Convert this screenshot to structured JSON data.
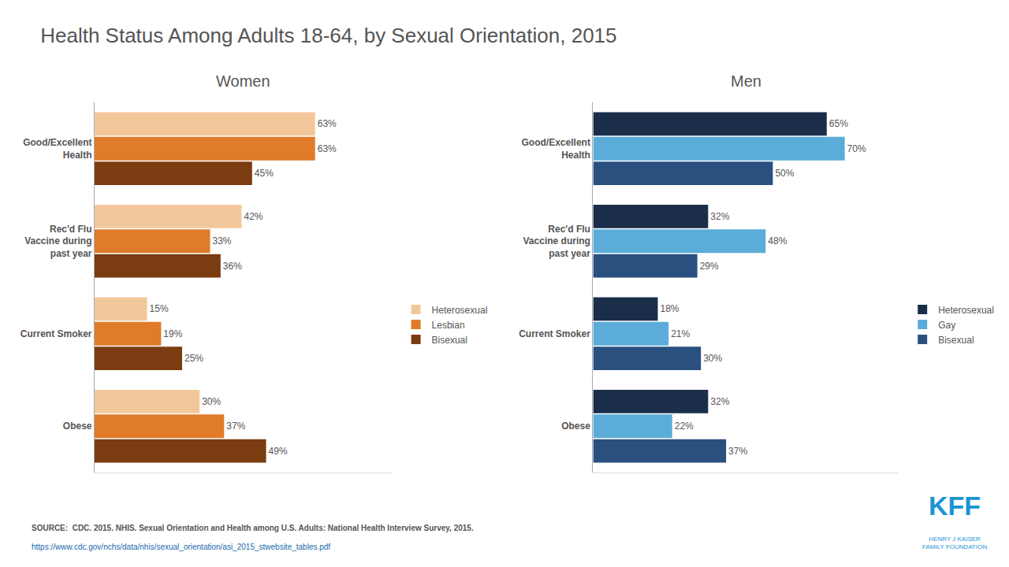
{
  "title": "Health Status Among Adults 18-64, by Sexual Orientation, 2015",
  "annotations": [
    {
      "text": "SOURCE:  CDC. 2015. NHIS. Sexual Orientation and Health among U.S. Adults: National Health Interview Survey, 2015.",
      "color": "#555555"
    },
    {
      "text": "https://www.cdc.gov/nchs/data/nhis/sexual_orientation/asi_2015_stwebsite_tables.pdf",
      "color": "#1a6aad"
    },
    {
      "text": "KFF",
      "color": "#1a95d2"
    },
    {
      "text": "HENRY J KAISER\nFAMILY FOUNDATION",
      "color": "#1a95d2"
    }
  ],
  "chart_data": [
    {
      "type": "bar",
      "orientation": "horizontal",
      "title": "Women",
      "categories": [
        "Good/Excellent\nHealth",
        "Rec'd Flu\nVaccine during\npast year",
        "Current Smoker",
        "Obese"
      ],
      "series": [
        {
          "name": "Heterosexual",
          "color": "#f2c89b",
          "values": [
            63,
            42,
            15,
            30
          ],
          "value_labels": [
            "63%",
            "42%",
            "15%",
            "30%"
          ]
        },
        {
          "name": "Lesbian",
          "color": "#e07b2a",
          "values": [
            63,
            33,
            19,
            37
          ],
          "value_labels": [
            "63%",
            "33%",
            "19%",
            "37%"
          ]
        },
        {
          "name": "Bisexual",
          "color": "#7a3c10",
          "values": [
            45,
            36,
            25,
            49
          ],
          "value_labels": [
            "45%",
            "36%",
            "25%",
            "49%"
          ]
        }
      ],
      "xlim": [
        0,
        85
      ],
      "xticks": [],
      "tick_labels": "y",
      "data_labels": true,
      "grid": false,
      "legend": "right"
    },
    {
      "type": "bar",
      "orientation": "horizontal",
      "title": "Men",
      "categories": [
        "Good/Excellent\nHealth",
        "Rec'd Flu\nVaccine during\npast year",
        "Current Smoker",
        "Obese"
      ],
      "series": [
        {
          "name": "Heterosexual",
          "color": "#1a2e4a",
          "values": [
            65,
            32,
            18,
            32
          ],
          "value_labels": [
            "65%",
            "32%",
            "18%",
            "32%"
          ]
        },
        {
          "name": "Gay",
          "color": "#5bacd8",
          "values": [
            70,
            48,
            21,
            22
          ],
          "value_labels": [
            "70%",
            "48%",
            "21%",
            "22%"
          ]
        },
        {
          "name": "Bisexual",
          "color": "#2a5080",
          "values": [
            50,
            29,
            30,
            37
          ],
          "value_labels": [
            "50%",
            "29%",
            "30%",
            "37%"
          ]
        }
      ],
      "xlim": [
        0,
        85
      ],
      "xticks": [],
      "tick_labels": "y",
      "data_labels": true,
      "grid": false,
      "legend": "right"
    }
  ]
}
